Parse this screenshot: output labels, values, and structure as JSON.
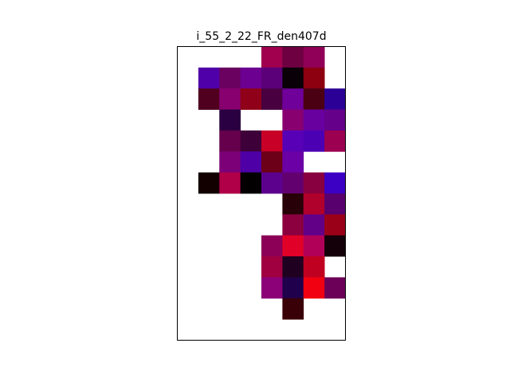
{
  "chart_data": {
    "type": "heatmap",
    "title": "i_55_2_22_FR_den407d",
    "xlabel": "",
    "ylabel": "",
    "n_cols": 8,
    "n_rows": 14,
    "axis_ticks": false,
    "grid": false,
    "background_color": "#ffffff",
    "cells": [
      {
        "row": 0,
        "col": 4,
        "color": "#a0004e"
      },
      {
        "row": 0,
        "col": 5,
        "color": "#6e0041"
      },
      {
        "row": 0,
        "col": 6,
        "color": "#900058"
      },
      {
        "row": 1,
        "col": 1,
        "color": "#5000a8"
      },
      {
        "row": 1,
        "col": 2,
        "color": "#6a0060"
      },
      {
        "row": 1,
        "col": 3,
        "color": "#6c0090"
      },
      {
        "row": 1,
        "col": 4,
        "color": "#5c007a"
      },
      {
        "row": 1,
        "col": 5,
        "color": "#0a0008"
      },
      {
        "row": 1,
        "col": 6,
        "color": "#8c0010"
      },
      {
        "row": 2,
        "col": 1,
        "color": "#50001e"
      },
      {
        "row": 2,
        "col": 2,
        "color": "#880070"
      },
      {
        "row": 2,
        "col": 3,
        "color": "#900018"
      },
      {
        "row": 2,
        "col": 4,
        "color": "#480040"
      },
      {
        "row": 2,
        "col": 5,
        "color": "#70009a"
      },
      {
        "row": 2,
        "col": 6,
        "color": "#4a0012"
      },
      {
        "row": 2,
        "col": 7,
        "color": "#2a0096"
      },
      {
        "row": 3,
        "col": 2,
        "color": "#2a0042"
      },
      {
        "row": 3,
        "col": 5,
        "color": "#880070"
      },
      {
        "row": 3,
        "col": 6,
        "color": "#6800a0"
      },
      {
        "row": 3,
        "col": 7,
        "color": "#64008a"
      },
      {
        "row": 4,
        "col": 2,
        "color": "#66004c"
      },
      {
        "row": 4,
        "col": 3,
        "color": "#3e0038"
      },
      {
        "row": 4,
        "col": 4,
        "color": "#c80028"
      },
      {
        "row": 4,
        "col": 5,
        "color": "#5800b6"
      },
      {
        "row": 4,
        "col": 6,
        "color": "#4c00b4"
      },
      {
        "row": 4,
        "col": 7,
        "color": "#9c0050"
      },
      {
        "row": 5,
        "col": 2,
        "color": "#7c0078"
      },
      {
        "row": 5,
        "col": 3,
        "color": "#4e00a6"
      },
      {
        "row": 5,
        "col": 4,
        "color": "#6c0018"
      },
      {
        "row": 5,
        "col": 5,
        "color": "#6a00a6"
      },
      {
        "row": 6,
        "col": 1,
        "color": "#120000"
      },
      {
        "row": 6,
        "col": 2,
        "color": "#b00048"
      },
      {
        "row": 6,
        "col": 3,
        "color": "#020000"
      },
      {
        "row": 6,
        "col": 4,
        "color": "#5c008e"
      },
      {
        "row": 6,
        "col": 5,
        "color": "#620070"
      },
      {
        "row": 6,
        "col": 6,
        "color": "#880040"
      },
      {
        "row": 6,
        "col": 7,
        "color": "#3c00c4"
      },
      {
        "row": 7,
        "col": 5,
        "color": "#280008"
      },
      {
        "row": 7,
        "col": 6,
        "color": "#b0002c"
      },
      {
        "row": 7,
        "col": 7,
        "color": "#58006e"
      },
      {
        "row": 8,
        "col": 5,
        "color": "#8c0040"
      },
      {
        "row": 8,
        "col": 6,
        "color": "#620088"
      },
      {
        "row": 8,
        "col": 7,
        "color": "#9a0018"
      },
      {
        "row": 9,
        "col": 4,
        "color": "#8c0058"
      },
      {
        "row": 9,
        "col": 5,
        "color": "#e00028"
      },
      {
        "row": 9,
        "col": 6,
        "color": "#b00058"
      },
      {
        "row": 9,
        "col": 7,
        "color": "#140008"
      },
      {
        "row": 10,
        "col": 4,
        "color": "#a00040"
      },
      {
        "row": 10,
        "col": 5,
        "color": "#200020"
      },
      {
        "row": 10,
        "col": 6,
        "color": "#c00020"
      },
      {
        "row": 11,
        "col": 4,
        "color": "#8c0078"
      },
      {
        "row": 11,
        "col": 5,
        "color": "#20004c"
      },
      {
        "row": 11,
        "col": 6,
        "color": "#f00010"
      },
      {
        "row": 11,
        "col": 7,
        "color": "#6c0058"
      },
      {
        "row": 12,
        "col": 5,
        "color": "#3a0008"
      }
    ]
  }
}
